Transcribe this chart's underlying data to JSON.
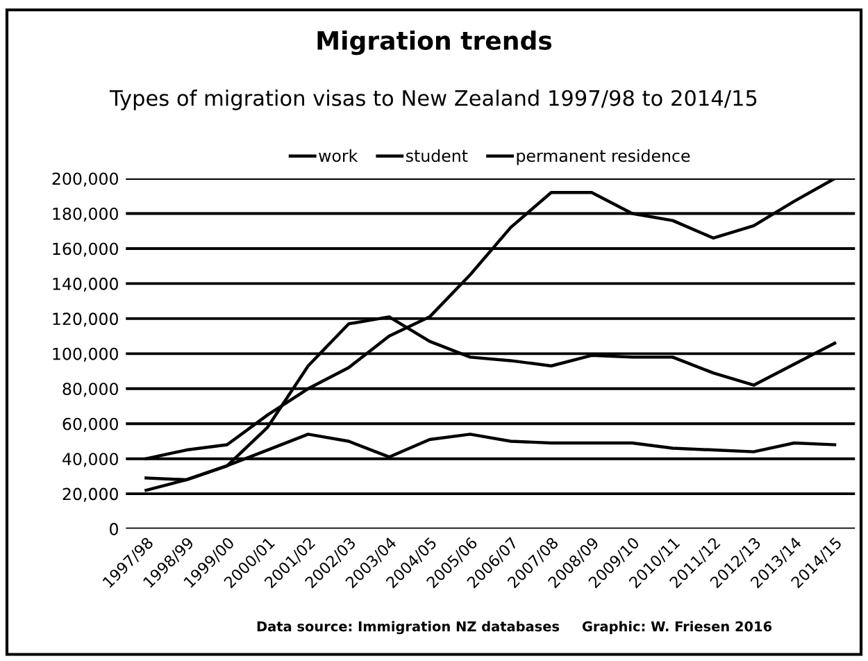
{
  "chart_data": {
    "type": "line",
    "title": "Migration trends",
    "subtitle": "Types of migration visas to New Zealand 1997/98 to 2014/15",
    "categories": [
      "1997/98",
      "1998/99",
      "1999/00",
      "2000/01",
      "2001/02",
      "2002/03",
      "2003/04",
      "2004/05",
      "2005/06",
      "2006/07",
      "2007/08",
      "2008/09",
      "2009/10",
      "2010/11",
      "2011/12",
      "2012/13",
      "2013/14",
      "2014/15"
    ],
    "series": [
      {
        "name": "work",
        "color": "#000000",
        "values": [
          40000,
          45000,
          48000,
          65000,
          80000,
          92000,
          110000,
          121000,
          145000,
          172000,
          192000,
          192000,
          180000,
          176000,
          166000,
          173000,
          187000,
          200000
        ]
      },
      {
        "name": "student",
        "color": "#000000",
        "values": [
          22000,
          28000,
          36000,
          58000,
          93000,
          117000,
          121000,
          107000,
          98000,
          96000,
          93000,
          99000,
          98000,
          98000,
          89000,
          82000,
          94000,
          106000
        ]
      },
      {
        "name": "permanent residence",
        "color": "#000000",
        "values": [
          29000,
          28000,
          36000,
          45000,
          54000,
          50000,
          41000,
          51000,
          54000,
          50000,
          49000,
          49000,
          49000,
          46000,
          45000,
          44000,
          49000,
          48000
        ]
      }
    ],
    "ylim": [
      0,
      200000
    ],
    "yticks": [
      {
        "value": 0,
        "label": "0"
      },
      {
        "value": 20000,
        "label": "20,000"
      },
      {
        "value": 40000,
        "label": "40,000"
      },
      {
        "value": 60000,
        "label": "60,000"
      },
      {
        "value": 80000,
        "label": "80,000"
      },
      {
        "value": 100000,
        "label": "100,000"
      },
      {
        "value": 120000,
        "label": "120,000"
      },
      {
        "value": 140000,
        "label": "140,000"
      },
      {
        "value": 160000,
        "label": "160,000"
      },
      {
        "value": 180000,
        "label": "180,000"
      },
      {
        "value": 200000,
        "label": "200,000"
      }
    ],
    "grid": "y",
    "legend": "top",
    "marker": "none",
    "line_style": "solid",
    "annotations": [
      "Data source: Immigration NZ databases",
      "Graphic: W. Friesen 2016"
    ]
  }
}
